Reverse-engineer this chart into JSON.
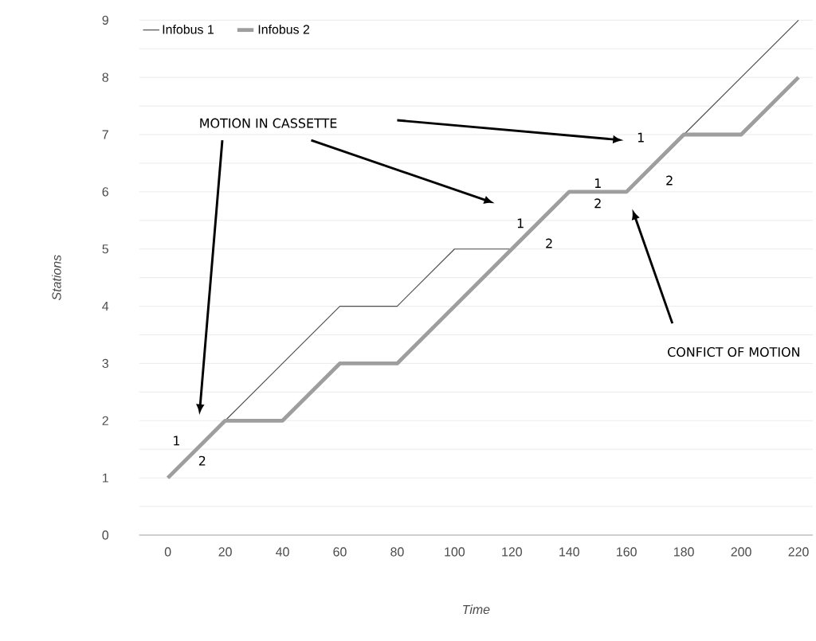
{
  "chart_data": {
    "type": "line",
    "xlabel": "Time",
    "ylabel": "Stations",
    "x": [
      0,
      20,
      40,
      60,
      80,
      100,
      120,
      140,
      160,
      180,
      200,
      220
    ],
    "series": [
      {
        "name": "Infobus 1",
        "color": "#4d4d4d",
        "values": [
          1,
          2,
          3,
          4,
          4,
          5,
          5,
          6,
          6,
          7,
          8,
          9
        ]
      },
      {
        "name": "Infobus 2",
        "color": "#9e9e9e",
        "values": [
          1,
          2,
          2,
          3,
          3,
          4,
          5,
          6,
          6,
          7,
          7,
          8
        ]
      }
    ],
    "xlim": [
      -10,
      225
    ],
    "xticks": [
      0,
      20,
      40,
      60,
      80,
      100,
      120,
      140,
      160,
      180,
      200,
      220
    ],
    "ylim": [
      0,
      9
    ],
    "yticks": [
      0,
      {
        "value": 0.5,
        "label": null
      },
      1,
      {
        "value": 1.5,
        "label": null
      },
      2,
      {
        "value": 2.5,
        "label": null
      },
      3,
      {
        "value": 3.5,
        "label": null
      },
      4,
      {
        "value": 4.5,
        "label": null
      },
      5,
      {
        "value": 5.5,
        "label": null
      },
      6,
      {
        "value": 6.5,
        "label": null
      },
      7,
      {
        "value": 7.5,
        "label": null
      },
      8,
      {
        "value": 8.5,
        "label": null
      },
      9
    ],
    "grid": "y",
    "legend": "top left",
    "marker": "none",
    "line_style": "solid",
    "annotations": [
      "MOTION IN CASSETTE",
      "CONFICT OF MOTION",
      "1",
      "2",
      "1",
      "2",
      "1",
      "2",
      "1",
      "2"
    ]
  }
}
